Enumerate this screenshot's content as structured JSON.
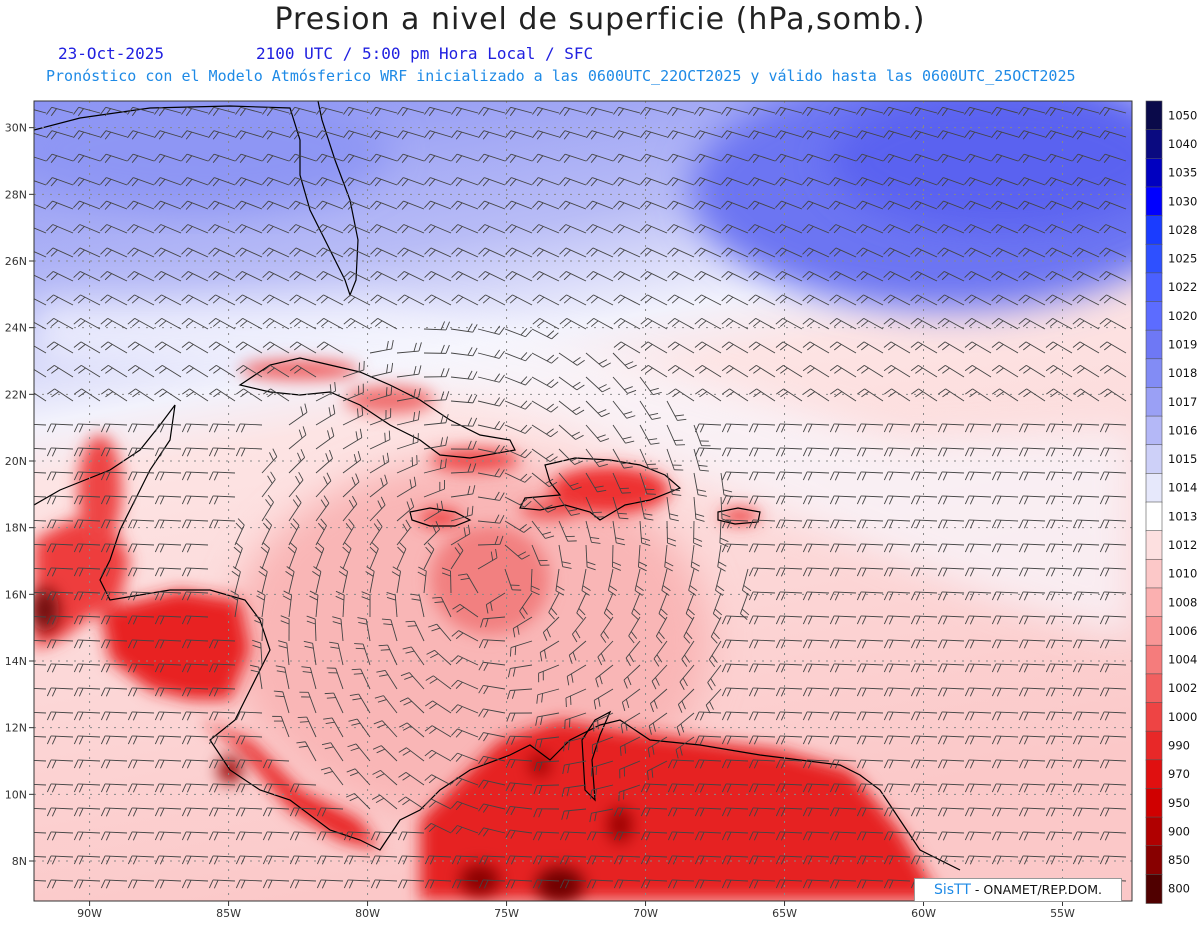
{
  "header": {
    "title": "Presion a nivel de superficie (hPa,somb.)",
    "date": "23-Oct-2025",
    "time": "2100 UTC / 5:00 pm Hora Local / SFC",
    "subtitle": "Pronóstico con el Modelo Atmósferico WRF inicializado a las 0600UTC_22OCT2025 y válido hasta las  0600UTC_25OCT2025"
  },
  "axes": {
    "lon_labels": [
      "90W",
      "85W",
      "80W",
      "75W",
      "70W",
      "65W",
      "60W",
      "55W"
    ],
    "lat_labels": [
      "30N",
      "28N",
      "26N",
      "24N",
      "22N",
      "20N",
      "18N",
      "16N",
      "14N",
      "12N",
      "10N",
      "8N"
    ],
    "lon_range": [
      -92,
      -52.5
    ],
    "lat_range": [
      6.8,
      30.8
    ]
  },
  "colorbar": {
    "levels": [
      "1050",
      "1040",
      "1035",
      "1030",
      "1028",
      "1025",
      "1022",
      "1020",
      "1019",
      "1018",
      "1017",
      "1016",
      "1015",
      "1014",
      "1013",
      "1012",
      "1010",
      "1008",
      "1006",
      "1004",
      "1002",
      "1000",
      "990",
      "970",
      "950",
      "900",
      "850",
      "800"
    ],
    "colors": [
      "#0a0a4a",
      "#0a0a80",
      "#0000c0",
      "#0000ff",
      "#1a3cff",
      "#2e50ff",
      "#4a60ff",
      "#5c6cff",
      "#6e78f5",
      "#828cf5",
      "#9aa0f5",
      "#b4b8f7",
      "#cdd0f8",
      "#e6e8fb",
      "#ffffff",
      "#fde0e0",
      "#fcc8c8",
      "#fbb0b0",
      "#f89696",
      "#f57c7c",
      "#f26060",
      "#ee4444",
      "#e82828",
      "#e01010",
      "#d00000",
      "#b00000",
      "#880000",
      "#500000"
    ]
  },
  "credit": {
    "brand": "SisTT",
    "text": "- ONAMET/REP.DOM."
  }
}
